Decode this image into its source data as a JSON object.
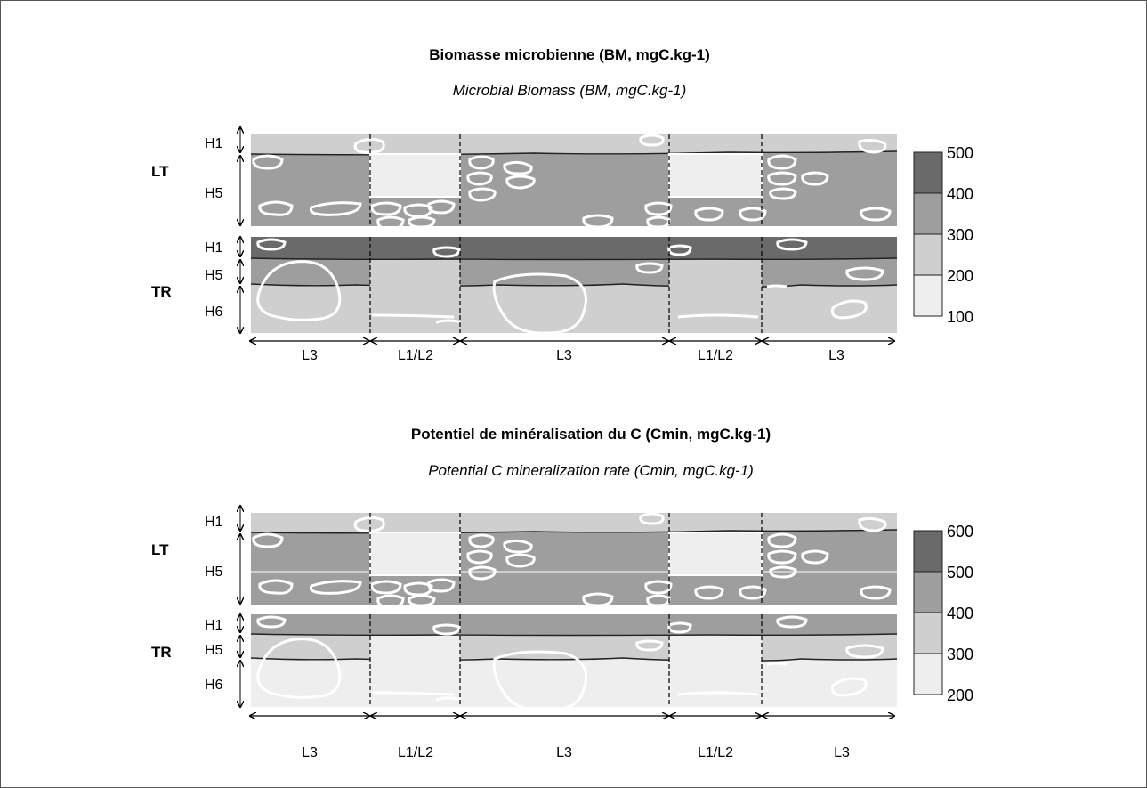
{
  "colors": {
    "c100": "#eeeeee",
    "c200": "#cfcfcf",
    "c300": "#9e9e9e",
    "c400": "#6a6a6a",
    "border": "#555555"
  },
  "panels": [
    {
      "title": "Biomasse microbienne (BM, mgC.kg-1)",
      "subtitle": "Microbial Biomass (BM, mgC.kg-1)",
      "profiles": [
        {
          "name": "LT",
          "horizons": [
            "H1",
            "H5"
          ]
        },
        {
          "name": "TR",
          "horizons": [
            "H1",
            "H5",
            "H6"
          ]
        }
      ],
      "legend": {
        "ticks": [
          "500",
          "400",
          "300",
          "200",
          "100"
        ]
      },
      "zones": [
        "L3",
        "L1/L2",
        "L3",
        "L1/L2",
        "L3"
      ]
    },
    {
      "title": "Potentiel de minéralisation du C (Cmin, mgC.kg-1)",
      "subtitle": "Potential C mineralization rate (Cmin, mgC.kg-1)",
      "profiles": [
        {
          "name": "LT",
          "horizons": [
            "H1",
            "H5"
          ]
        },
        {
          "name": "TR",
          "horizons": [
            "H1",
            "H5",
            "H6"
          ]
        }
      ],
      "legend": {
        "ticks": [
          "600",
          "500",
          "400",
          "300",
          "200"
        ]
      },
      "zones": [
        "L3",
        "L1/L2",
        "L3",
        "L1/L2",
        "L3"
      ]
    }
  ]
}
